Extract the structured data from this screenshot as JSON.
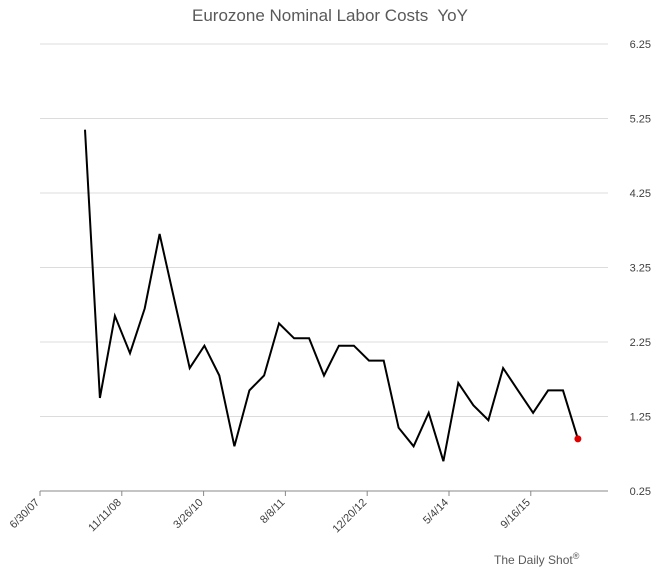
{
  "chart_data": {
    "type": "line",
    "title": "Eurozone Nominal Labor Costs  YoY",
    "xlabel": "",
    "ylabel": "",
    "x_tick_labels": [
      "6/30/07",
      "11/11/08",
      "3/26/10",
      "8/8/11",
      "12/20/12",
      "5/4/14",
      "9/16/15"
    ],
    "x_range": [
      "2007-06-30",
      "2016-12-31"
    ],
    "y_tick_labels": [
      "0.25",
      "1.25",
      "2.25",
      "3.25",
      "4.25",
      "5.25",
      "6.25"
    ],
    "ylim": [
      0.25,
      6.25
    ],
    "grid": true,
    "y_axis_position": "right",
    "line_color": "#000000",
    "last_point_color": "#e00000",
    "series": [
      {
        "x": [
          "2008-03-31",
          "2008-06-30",
          "2008-09-30",
          "2008-12-31",
          "2009-03-31",
          "2009-06-30",
          "2009-09-30",
          "2009-12-31",
          "2010-03-31",
          "2010-06-30",
          "2010-09-30",
          "2010-12-31",
          "2011-03-31",
          "2011-06-30",
          "2011-09-30",
          "2011-12-31",
          "2012-03-31",
          "2012-06-30",
          "2012-09-30",
          "2012-12-31",
          "2013-03-31",
          "2013-06-30",
          "2013-09-30",
          "2013-12-31",
          "2014-03-31",
          "2014-06-30",
          "2014-09-30",
          "2014-12-31",
          "2015-03-31",
          "2015-06-30",
          "2015-09-30",
          "2015-12-31",
          "2016-03-31",
          "2016-06-30",
          "2016-09-30"
        ],
        "values": [
          5.1,
          1.5,
          2.6,
          2.1,
          2.7,
          3.7,
          2.8,
          1.9,
          2.2,
          1.8,
          0.85,
          1.6,
          1.8,
          2.5,
          2.3,
          2.3,
          1.8,
          2.2,
          2.2,
          2.0,
          2.0,
          1.1,
          0.85,
          1.3,
          0.65,
          1.7,
          1.4,
          1.2,
          1.9,
          1.6,
          1.3,
          1.6,
          1.6,
          0.95,
          null
        ]
      }
    ]
  },
  "credit": {
    "text": "The Daily Shot",
    "mark": "®"
  }
}
